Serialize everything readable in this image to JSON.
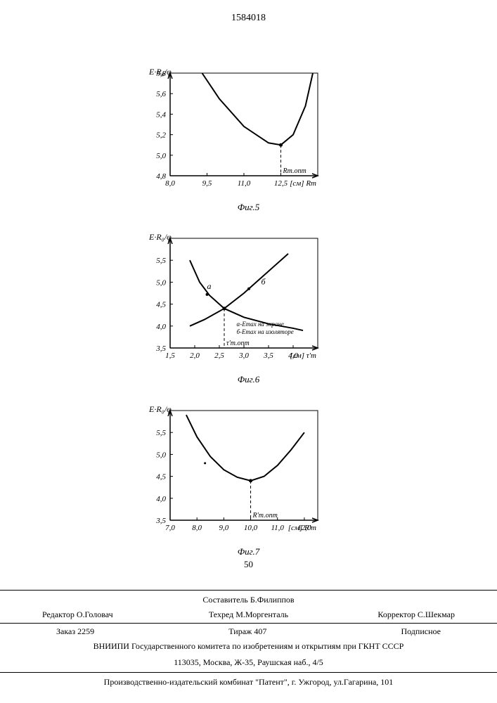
{
  "doc_number": "1584018",
  "chart5": {
    "type": "line",
    "caption": "Фиг.5",
    "ylabel": "E·R₀/φ",
    "xlabel_unit": "[см] Rт",
    "xlim": [
      8.0,
      14.0
    ],
    "ylim": [
      4.8,
      5.8
    ],
    "xticks": [
      8.0,
      9.5,
      11.0,
      12.5
    ],
    "yticks": [
      4.8,
      5.0,
      5.2,
      5.4,
      5.6,
      5.8
    ],
    "marker_label": "Rт.опт",
    "marker_x": 12.5,
    "marker_y": 5.1,
    "points": [
      [
        9.3,
        5.8
      ],
      [
        10.0,
        5.55
      ],
      [
        11.0,
        5.28
      ],
      [
        12.0,
        5.12
      ],
      [
        12.5,
        5.1
      ],
      [
        13.0,
        5.2
      ],
      [
        13.5,
        5.48
      ],
      [
        13.8,
        5.8
      ]
    ],
    "axis_color": "#000000",
    "line_color": "#000000",
    "line_width": 2,
    "bg": "#ffffff",
    "tick_fontsize": 11,
    "label_fontsize": 12
  },
  "chart6": {
    "type": "line",
    "caption": "Фиг.6",
    "ylabel": "E·R₀/φ",
    "xlabel_unit": "[см] τ'т",
    "xlim": [
      1.5,
      4.5
    ],
    "ylim": [
      3.5,
      6.0
    ],
    "xticks": [
      1.5,
      2.0,
      2.5,
      3.0,
      3.5,
      4.0
    ],
    "yticks": [
      3.5,
      4.0,
      4.5,
      5.0,
      5.5
    ],
    "label_a": "а",
    "label_b": "б",
    "legend_a": "α-Emax на экране",
    "legend_b": "б-Emax на изоляторе",
    "marker_label": "τ'т.опт",
    "marker_x": 2.6,
    "marker_y": 4.4,
    "series_a": [
      [
        1.9,
        5.5
      ],
      [
        2.1,
        5.0
      ],
      [
        2.3,
        4.7
      ],
      [
        2.6,
        4.4
      ],
      [
        3.0,
        4.2
      ],
      [
        3.5,
        4.05
      ],
      [
        4.0,
        3.95
      ],
      [
        4.2,
        3.9
      ]
    ],
    "series_b": [
      [
        1.9,
        4.0
      ],
      [
        2.2,
        4.15
      ],
      [
        2.6,
        4.4
      ],
      [
        3.0,
        4.75
      ],
      [
        3.3,
        5.05
      ],
      [
        3.6,
        5.35
      ],
      [
        3.8,
        5.55
      ],
      [
        3.9,
        5.65
      ]
    ],
    "axis_color": "#000000",
    "line_color": "#000000",
    "line_width": 2,
    "bg": "#ffffff",
    "tick_fontsize": 11,
    "label_fontsize": 12
  },
  "chart7": {
    "type": "line",
    "caption": "Фиг.7",
    "ylabel": "E·R₀/φ",
    "xlabel_unit": "[см] R'т",
    "xlim": [
      7.0,
      12.5
    ],
    "ylim": [
      3.5,
      6.0
    ],
    "xticks": [
      7.0,
      8.0,
      9.0,
      10.0,
      11.0,
      12.0
    ],
    "yticks": [
      3.5,
      4.0,
      4.5,
      5.0,
      5.5
    ],
    "marker_label": "R'т.опт",
    "marker_x": 10.0,
    "marker_y": 4.4,
    "points": [
      [
        7.6,
        5.9
      ],
      [
        8.0,
        5.4
      ],
      [
        8.5,
        4.95
      ],
      [
        9.0,
        4.65
      ],
      [
        9.5,
        4.48
      ],
      [
        10.0,
        4.4
      ],
      [
        10.5,
        4.5
      ],
      [
        11.0,
        4.75
      ],
      [
        11.5,
        5.1
      ],
      [
        12.0,
        5.5
      ]
    ],
    "axis_color": "#000000",
    "line_color": "#000000",
    "line_width": 2,
    "bg": "#ffffff",
    "tick_fontsize": 11,
    "label_fontsize": 12,
    "page_mark": "50"
  },
  "footer": {
    "compiler": "Составитель Б.Филиппов",
    "editor_label": "Редактор",
    "editor": "О.Головач",
    "tech_editor_label": "Техред",
    "tech_editor": "М.Моргенталь",
    "corrector_label": "Корректор",
    "corrector": "С.Шекмар",
    "order_label": "Заказ",
    "order": "2259",
    "print_run_label": "Тираж",
    "print_run": "407",
    "sub": "Подписное",
    "org": "ВНИИПИ Государственного комитета по изобретениям и открытиям при ГКНТ СССР",
    "addr1": "113035, Москва, Ж-35, Раушская наб., 4/5",
    "addr2": "Производственно-издательский комбинат \"Патент\", г. Ужгород, ул.Гагарина, 101"
  }
}
